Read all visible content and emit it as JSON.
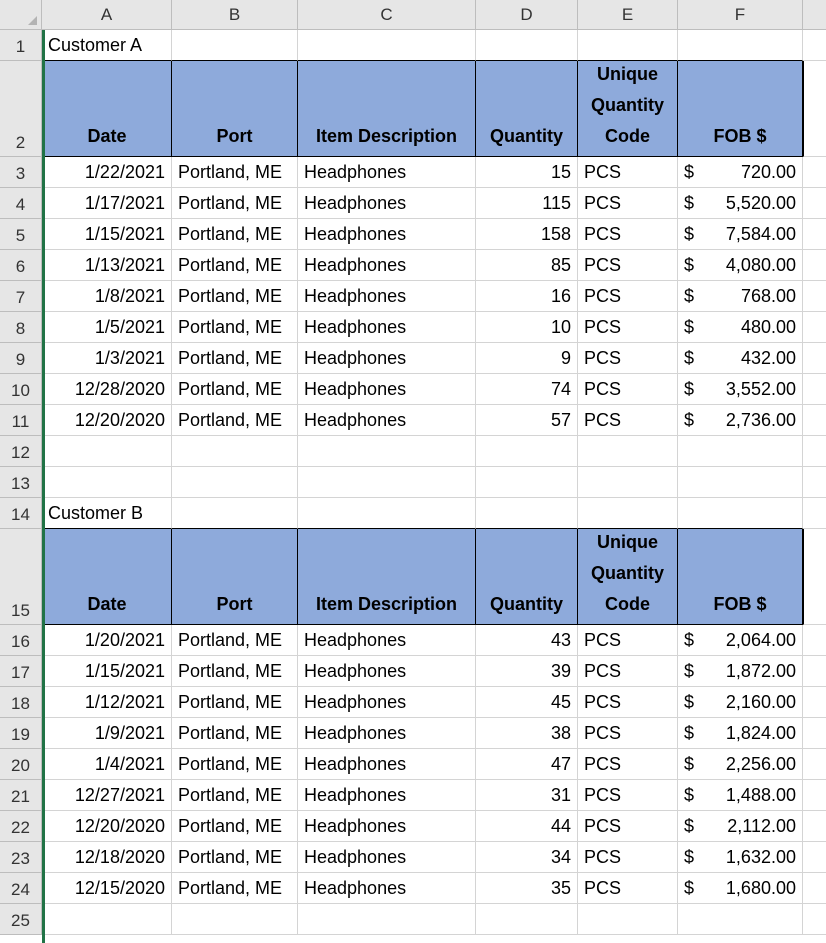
{
  "columns": [
    "A",
    "B",
    "C",
    "D",
    "E",
    "F"
  ],
  "rows": [
    "1",
    "2",
    "3",
    "4",
    "5",
    "6",
    "7",
    "8",
    "9",
    "10",
    "11",
    "12",
    "13",
    "14",
    "15",
    "16",
    "17",
    "18",
    "19",
    "20",
    "21",
    "22",
    "23",
    "24",
    "25"
  ],
  "header": {
    "date": "Date",
    "port": "Port",
    "item": "Item Description",
    "qty": "Quantity",
    "uqc": "Unique Quantity Code",
    "fob": "FOB $"
  },
  "customer_a": {
    "title": "Customer A",
    "records": [
      {
        "date": "1/22/2021",
        "port": "Portland, ME",
        "item": "Headphones",
        "qty": "15",
        "uqc": "PCS",
        "cur": "$",
        "fob": "720.00"
      },
      {
        "date": "1/17/2021",
        "port": "Portland, ME",
        "item": "Headphones",
        "qty": "115",
        "uqc": "PCS",
        "cur": "$",
        "fob": "5,520.00"
      },
      {
        "date": "1/15/2021",
        "port": "Portland, ME",
        "item": "Headphones",
        "qty": "158",
        "uqc": "PCS",
        "cur": "$",
        "fob": "7,584.00"
      },
      {
        "date": "1/13/2021",
        "port": "Portland, ME",
        "item": "Headphones",
        "qty": "85",
        "uqc": "PCS",
        "cur": "$",
        "fob": "4,080.00"
      },
      {
        "date": "1/8/2021",
        "port": "Portland, ME",
        "item": "Headphones",
        "qty": "16",
        "uqc": "PCS",
        "cur": "$",
        "fob": "768.00"
      },
      {
        "date": "1/5/2021",
        "port": "Portland, ME",
        "item": "Headphones",
        "qty": "10",
        "uqc": "PCS",
        "cur": "$",
        "fob": "480.00"
      },
      {
        "date": "1/3/2021",
        "port": "Portland, ME",
        "item": "Headphones",
        "qty": "9",
        "uqc": "PCS",
        "cur": "$",
        "fob": "432.00"
      },
      {
        "date": "12/28/2020",
        "port": "Portland, ME",
        "item": "Headphones",
        "qty": "74",
        "uqc": "PCS",
        "cur": "$",
        "fob": "3,552.00"
      },
      {
        "date": "12/20/2020",
        "port": "Portland, ME",
        "item": "Headphones",
        "qty": "57",
        "uqc": "PCS",
        "cur": "$",
        "fob": "2,736.00"
      }
    ]
  },
  "customer_b": {
    "title": "Customer B",
    "records": [
      {
        "date": "1/20/2021",
        "port": "Portland, ME",
        "item": "Headphones",
        "qty": "43",
        "uqc": "PCS",
        "cur": "$",
        "fob": "2,064.00"
      },
      {
        "date": "1/15/2021",
        "port": "Portland, ME",
        "item": "Headphones",
        "qty": "39",
        "uqc": "PCS",
        "cur": "$",
        "fob": "1,872.00"
      },
      {
        "date": "1/12/2021",
        "port": "Portland, ME",
        "item": "Headphones",
        "qty": "45",
        "uqc": "PCS",
        "cur": "$",
        "fob": "2,160.00"
      },
      {
        "date": "1/9/2021",
        "port": "Portland, ME",
        "item": "Headphones",
        "qty": "38",
        "uqc": "PCS",
        "cur": "$",
        "fob": "1,824.00"
      },
      {
        "date": "1/4/2021",
        "port": "Portland, ME",
        "item": "Headphones",
        "qty": "47",
        "uqc": "PCS",
        "cur": "$",
        "fob": "2,256.00"
      },
      {
        "date": "12/27/2021",
        "port": "Portland, ME",
        "item": "Headphones",
        "qty": "31",
        "uqc": "PCS",
        "cur": "$",
        "fob": "1,488.00"
      },
      {
        "date": "12/20/2020",
        "port": "Portland, ME",
        "item": "Headphones",
        "qty": "44",
        "uqc": "PCS",
        "cur": "$",
        "fob": "2,112.00"
      },
      {
        "date": "12/18/2020",
        "port": "Portland, ME",
        "item": "Headphones",
        "qty": "34",
        "uqc": "PCS",
        "cur": "$",
        "fob": "1,632.00"
      },
      {
        "date": "12/15/2020",
        "port": "Portland, ME",
        "item": "Headphones",
        "qty": "35",
        "uqc": "PCS",
        "cur": "$",
        "fob": "1,680.00"
      }
    ]
  },
  "colors": {
    "header_fill": "#8eaadb",
    "selection": "#217346",
    "header_bg": "#e6e6e6"
  }
}
